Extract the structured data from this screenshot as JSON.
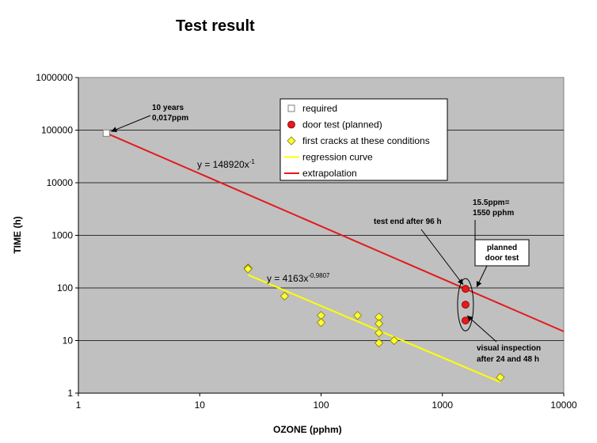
{
  "chart_data": {
    "type": "scatter",
    "title": "Test result",
    "xlabel": "OZONE (pphm)",
    "ylabel": "TIME (h)",
    "x_scale": "log",
    "y_scale": "log",
    "xlim": [
      1,
      10000
    ],
    "ylim": [
      1,
      1000000
    ],
    "x_ticks": [
      "1",
      "10",
      "100",
      "1000",
      "10000"
    ],
    "y_ticks": [
      "1",
      "10",
      "100",
      "1000",
      "10000",
      "100000",
      "1000000"
    ],
    "grid": "horizontal",
    "legend_placement": "top-right",
    "series": [
      {
        "name": "required",
        "marker": "square",
        "color": "#ffffff",
        "edge_color": "#808080",
        "points": [
          [
            1.7,
            87600
          ]
        ]
      },
      {
        "name": "door test (planned)",
        "marker": "circle",
        "color": "#e8191a",
        "points": [
          [
            1550,
            96
          ],
          [
            1550,
            48
          ],
          [
            1550,
            24
          ]
        ]
      },
      {
        "name": "first cracks at these conditions",
        "marker": "diamond",
        "color": "#ffff33",
        "points": [
          [
            25,
            240
          ],
          [
            25,
            230
          ],
          [
            50,
            70
          ],
          [
            100,
            30
          ],
          [
            100,
            22
          ],
          [
            200,
            30
          ],
          [
            300,
            28
          ],
          [
            300,
            21
          ],
          [
            300,
            14
          ],
          [
            300,
            9
          ],
          [
            400,
            10
          ],
          [
            3000,
            2
          ]
        ]
      },
      {
        "name": "regression curve",
        "line": true,
        "color": "#ffff00",
        "coef": 4163,
        "exp": -0.9807,
        "x_range": [
          25,
          3000
        ]
      },
      {
        "name": "extrapolation",
        "line": true,
        "color": "#e31a1c",
        "coef": 148920,
        "exp": -1,
        "x_range": [
          1.7,
          10000
        ]
      }
    ],
    "annotations": [
      {
        "id": "required",
        "lines": [
          "10 years",
          "0,017ppm"
        ],
        "at": [
          1.7,
          87600
        ]
      },
      {
        "id": "eq-extrap",
        "base": "y = 148920x",
        "sup": "-1"
      },
      {
        "id": "eq-regress",
        "base": "y = 4163x",
        "sup": "-0,9807"
      },
      {
        "id": "test-end",
        "lines": [
          "test end after 96 h"
        ]
      },
      {
        "id": "ppm",
        "lines": [
          "15.5ppm=",
          "1550 pphm"
        ]
      },
      {
        "id": "planned",
        "lines": [
          "planned",
          "door test"
        ]
      },
      {
        "id": "visual",
        "lines": [
          "visual inspection",
          "after 24 and 48 h"
        ]
      }
    ]
  },
  "colors": {
    "plot_bg": "#c0c0c0",
    "grid": "#000000"
  }
}
